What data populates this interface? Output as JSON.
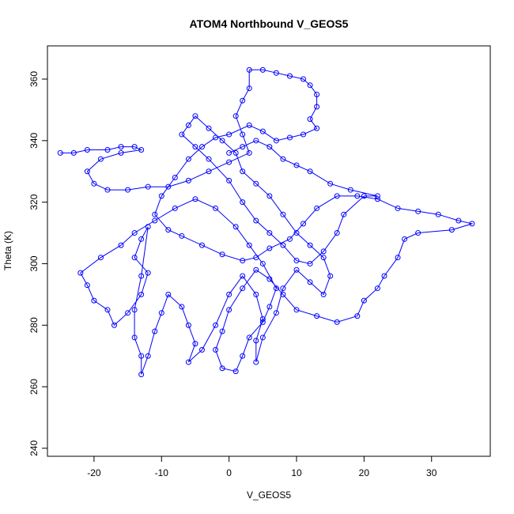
{
  "chart_data": {
    "type": "line",
    "title": "ATOM4 Northbound V_GEOS5",
    "x_label": "V_GEOS5",
    "y_label": "Theta (K)",
    "marker": "open-circle",
    "color": "#0000ff",
    "xlim": [
      -26.9,
      38.7
    ],
    "ylim": [
      237.4,
      370.8
    ],
    "xticks": [
      -20,
      -10,
      0,
      10,
      20,
      30
    ],
    "yticks": [
      240,
      260,
      280,
      300,
      320,
      340,
      360
    ],
    "x": [
      -25,
      -23,
      -21,
      -18,
      -16,
      -14,
      -13,
      -16,
      -19,
      -21,
      -20,
      -18,
      -15,
      -12,
      -9,
      -6,
      -3,
      0,
      3,
      2,
      1,
      2,
      3,
      3,
      5,
      7,
      9,
      11,
      12,
      13,
      13,
      12,
      13,
      11,
      9,
      7,
      5,
      3,
      0,
      -2,
      -4,
      -6,
      -8,
      -10,
      -11,
      -9,
      -7,
      -4,
      -1,
      2,
      4,
      6,
      9,
      11,
      13,
      16,
      19,
      22,
      25,
      28,
      31,
      34,
      36,
      33,
      28,
      26,
      25,
      23,
      22,
      20,
      19,
      16,
      13,
      10,
      8,
      6,
      4,
      2,
      0,
      -1,
      -2,
      -1,
      1,
      2,
      3,
      5,
      6,
      7,
      5,
      3,
      1,
      -2,
      -5,
      -8,
      -11,
      -14,
      -16,
      -19,
      -22,
      -21,
      -20,
      -18,
      -17,
      -15,
      -13,
      -12,
      -14,
      -13,
      -12,
      -13,
      -14,
      -14,
      -13,
      -13,
      -12,
      -11,
      -10,
      -9,
      -7,
      -6,
      -5,
      -6,
      -4,
      -2,
      0,
      2,
      4,
      5,
      4,
      4,
      5,
      7,
      8,
      10,
      12,
      14,
      15,
      14,
      12,
      10,
      8,
      6,
      4,
      2,
      1,
      -1,
      -3,
      -5,
      -6,
      -7,
      -5,
      -3,
      0,
      2,
      4,
      6,
      8,
      10,
      12,
      14,
      16,
      17,
      20,
      22,
      18,
      15,
      12,
      10,
      8,
      6,
      4,
      2,
      0
    ],
    "y": [
      336,
      336,
      337,
      337,
      338,
      338,
      337,
      336,
      334,
      330,
      326,
      324,
      324,
      325,
      325,
      327,
      330,
      333,
      336,
      342,
      348,
      353,
      357,
      363,
      363,
      362,
      361,
      360,
      358,
      355,
      351,
      347,
      344,
      342,
      341,
      340,
      343,
      345,
      342,
      341,
      338,
      334,
      328,
      322,
      316,
      311,
      309,
      306,
      303,
      301,
      302,
      305,
      308,
      313,
      318,
      322,
      322,
      321,
      318,
      317,
      316,
      314,
      313,
      311,
      310,
      308,
      302,
      296,
      292,
      288,
      283,
      281,
      283,
      285,
      290,
      295,
      298,
      292,
      285,
      278,
      272,
      266,
      265,
      270,
      276,
      281,
      286,
      292,
      300,
      306,
      312,
      318,
      321,
      318,
      314,
      310,
      306,
      302,
      297,
      293,
      288,
      285,
      280,
      284,
      290,
      297,
      302,
      308,
      312,
      296,
      285,
      276,
      270,
      264,
      270,
      278,
      284,
      290,
      286,
      280,
      274,
      268,
      272,
      280,
      290,
      296,
      290,
      282,
      275,
      268,
      276,
      284,
      292,
      298,
      294,
      290,
      296,
      302,
      306,
      310,
      316,
      322,
      326,
      330,
      336,
      340,
      344,
      348,
      345,
      342,
      338,
      334,
      327,
      320,
      314,
      310,
      306,
      301,
      300,
      304,
      310,
      316,
      322,
      322,
      324,
      326,
      330,
      332,
      334,
      338,
      340,
      338,
      336
    ]
  }
}
